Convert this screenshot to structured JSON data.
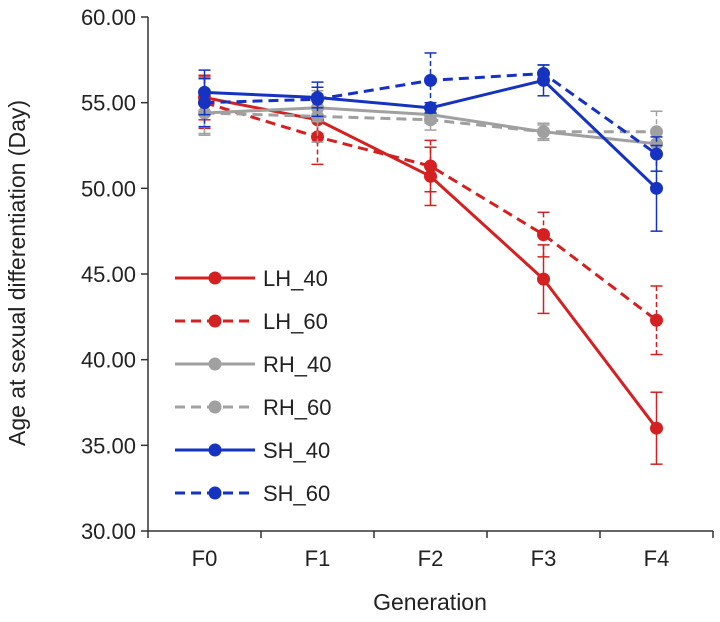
{
  "chart_data": {
    "type": "line",
    "xlabel": "Generation",
    "ylabel": "Age at sexual differentiation (Day)",
    "categories": [
      "F0",
      "F1",
      "F2",
      "F3",
      "F4"
    ],
    "ylim": [
      30,
      60
    ],
    "yticks": [
      "30.00",
      "35.00",
      "40.00",
      "45.00",
      "50.00",
      "55.00",
      "60.00"
    ],
    "ytick_values": [
      30,
      35,
      40,
      45,
      50,
      55,
      60
    ],
    "grid": false,
    "legend_position": "left",
    "series": [
      {
        "name": "LH_40",
        "color": "#d42020",
        "dashed": false,
        "values": [
          55.3,
          54.0,
          50.7,
          44.7,
          36.0
        ],
        "errors": [
          1.3,
          0.8,
          1.7,
          2.0,
          2.1
        ]
      },
      {
        "name": "LH_60",
        "color": "#d42020",
        "dashed": true,
        "values": [
          55.0,
          53.0,
          51.3,
          47.3,
          42.3
        ],
        "errors": [
          1.5,
          1.6,
          1.5,
          1.3,
          2.0
        ]
      },
      {
        "name": "RH_40",
        "color": "#a0a0a0",
        "dashed": false,
        "values": [
          54.4,
          54.7,
          54.3,
          53.3,
          52.6
        ],
        "errors": [
          1.2,
          0.8,
          0.5,
          0.5,
          0.6
        ]
      },
      {
        "name": "RH_60",
        "color": "#a0a0a0",
        "dashed": true,
        "values": [
          54.4,
          54.2,
          54.0,
          53.3,
          53.3
        ],
        "errors": [
          1.3,
          1.5,
          0.6,
          0.4,
          1.2
        ]
      },
      {
        "name": "SH_40",
        "color": "#1632c0",
        "dashed": false,
        "values": [
          55.6,
          55.3,
          54.7,
          56.3,
          50.0
        ],
        "errors": [
          1.3,
          0.6,
          0.3,
          0.9,
          2.5
        ]
      },
      {
        "name": "SH_60",
        "color": "#1632c0",
        "dashed": true,
        "values": [
          55.0,
          55.2,
          56.3,
          56.7,
          52.0
        ],
        "errors": [
          1.4,
          1.0,
          1.6,
          0.5,
          1.0
        ]
      }
    ]
  }
}
